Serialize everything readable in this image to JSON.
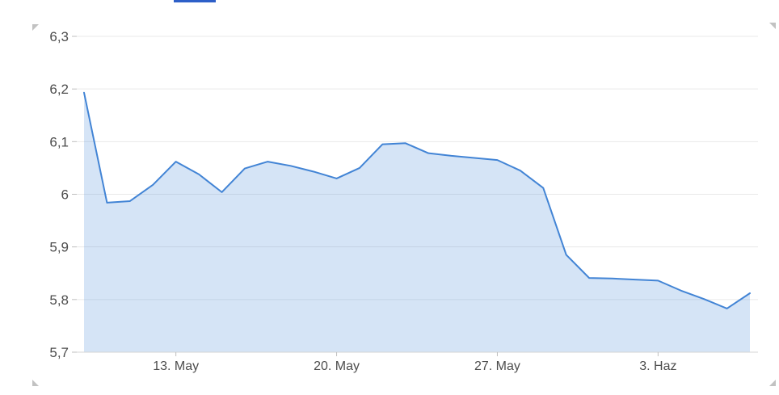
{
  "top_bar": {
    "indicator_color": "#2d5fc8"
  },
  "chart_data": {
    "type": "area",
    "title": "",
    "xlabel": "",
    "ylabel": "",
    "y_min": 5.7,
    "y_max": 6.3,
    "grid": true,
    "legend": "none",
    "y_ticks": [
      {
        "value": 6.3,
        "label": "6,3"
      },
      {
        "value": 6.2,
        "label": "6,2"
      },
      {
        "value": 6.1,
        "label": "6,1"
      },
      {
        "value": 6.0,
        "label": "6"
      },
      {
        "value": 5.9,
        "label": "5,9"
      },
      {
        "value": 5.8,
        "label": "5,8"
      },
      {
        "value": 5.7,
        "label": "5,7"
      }
    ],
    "x_ticks": [
      {
        "index": 4,
        "label": "13. May"
      },
      {
        "index": 11,
        "label": "20. May"
      },
      {
        "index": 18,
        "label": "27. May"
      },
      {
        "index": 25,
        "label": "3. Haz"
      }
    ],
    "values": [
      6.193,
      5.984,
      5.987,
      6.018,
      6.062,
      6.038,
      6.004,
      6.049,
      6.062,
      6.054,
      6.043,
      6.03,
      6.05,
      6.095,
      6.097,
      6.078,
      6.073,
      6.069,
      6.065,
      6.045,
      6.012,
      5.885,
      5.841,
      5.84,
      5.838,
      5.836,
      5.817,
      5.801,
      5.783,
      5.812
    ],
    "colors": {
      "line": "#4284d5",
      "fill": "rgba(66,132,213,0.22)",
      "grid": "#e9e9e9",
      "axis_line": "#d4d4d4",
      "tick": "#bfbfbf",
      "label": "#4d4d4d"
    }
  }
}
